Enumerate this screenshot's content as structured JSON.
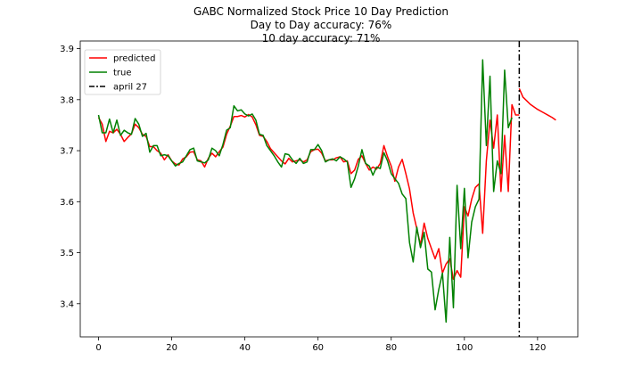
{
  "chart_data": {
    "type": "line",
    "title": "GABC Normalized Stock Price 10 Day Prediction",
    "subtitle_lines": [
      "Day to Day accuracy: 76%",
      "10 day accuracy: 71%"
    ],
    "xlabel": "",
    "ylabel": "",
    "xlim": [
      -5,
      131
    ],
    "ylim": [
      3.335,
      3.915
    ],
    "x_ticks": [
      0,
      20,
      40,
      60,
      80,
      100,
      120
    ],
    "y_ticks": [
      3.4,
      3.5,
      3.6,
      3.7,
      3.8,
      3.9
    ],
    "y_tick_labels": [
      "3.4",
      "3.5",
      "3.6",
      "3.7",
      "3.8",
      "3.9"
    ],
    "grid": false,
    "legend": {
      "placement": "top-left",
      "entries": [
        {
          "label": "predicted",
          "color": "#ff0000",
          "style": "solid"
        },
        {
          "label": "true",
          "color": "#008000",
          "style": "solid"
        },
        {
          "label": "april 27",
          "color": "#000000",
          "style": "dashdot"
        }
      ]
    },
    "vline": {
      "x": 115,
      "label": "april 27",
      "color": "#000000"
    },
    "series": [
      {
        "name": "predicted",
        "color": "#ff0000",
        "x_start": 0,
        "values": [
          3.765,
          3.752,
          3.718,
          3.738,
          3.735,
          3.742,
          3.732,
          3.718,
          3.726,
          3.733,
          3.752,
          3.745,
          3.732,
          3.728,
          3.708,
          3.708,
          3.7,
          3.695,
          3.682,
          3.692,
          3.68,
          3.674,
          3.672,
          3.684,
          3.688,
          3.697,
          3.698,
          3.682,
          3.68,
          3.668,
          3.685,
          3.695,
          3.688,
          3.698,
          3.707,
          3.732,
          3.748,
          3.767,
          3.767,
          3.769,
          3.766,
          3.771,
          3.766,
          3.751,
          3.73,
          3.728,
          3.718,
          3.704,
          3.696,
          3.688,
          3.68,
          3.674,
          3.685,
          3.678,
          3.68,
          3.682,
          3.678,
          3.682,
          3.698,
          3.702,
          3.703,
          3.695,
          3.68,
          3.682,
          3.682,
          3.686,
          3.688,
          3.678,
          3.68,
          3.655,
          3.662,
          3.683,
          3.69,
          3.675,
          3.662,
          3.668,
          3.664,
          3.675,
          3.71,
          3.688,
          3.67,
          3.64,
          3.668,
          3.683,
          3.655,
          3.625,
          3.578,
          3.547,
          3.515,
          3.558,
          3.528,
          3.508,
          3.488,
          3.508,
          3.46,
          3.478,
          3.488,
          3.448,
          3.465,
          3.452,
          3.59,
          3.572,
          3.605,
          3.628,
          3.635,
          3.538,
          3.68,
          3.76,
          3.705,
          3.77,
          3.62,
          3.73,
          3.62,
          3.79,
          3.77,
          3.77
        ]
      },
      {
        "name": "true",
        "color": "#008000",
        "x_start": 0,
        "values": [
          3.77,
          3.735,
          3.735,
          3.762,
          3.735,
          3.76,
          3.73,
          3.74,
          3.735,
          3.732,
          3.763,
          3.752,
          3.728,
          3.734,
          3.697,
          3.71,
          3.71,
          3.69,
          3.692,
          3.69,
          3.68,
          3.67,
          3.675,
          3.678,
          3.69,
          3.702,
          3.705,
          3.68,
          3.678,
          3.676,
          3.682,
          3.705,
          3.7,
          3.69,
          3.712,
          3.74,
          3.745,
          3.788,
          3.778,
          3.78,
          3.772,
          3.768,
          3.772,
          3.76,
          3.732,
          3.73,
          3.71,
          3.7,
          3.69,
          3.678,
          3.668,
          3.694,
          3.692,
          3.682,
          3.675,
          3.685,
          3.675,
          3.678,
          3.702,
          3.702,
          3.712,
          3.7,
          3.678,
          3.682,
          3.684,
          3.68,
          3.688,
          3.684,
          3.678,
          3.628,
          3.645,
          3.67,
          3.702,
          3.675,
          3.67,
          3.652,
          3.668,
          3.665,
          3.696,
          3.68,
          3.655,
          3.645,
          3.636,
          3.615,
          3.606,
          3.52,
          3.482,
          3.55,
          3.51,
          3.54,
          3.468,
          3.462,
          3.388,
          3.428,
          3.46,
          3.364,
          3.53,
          3.392,
          3.632,
          3.508,
          3.626,
          3.49,
          3.56,
          3.59,
          3.605,
          3.878,
          3.71,
          3.846,
          3.62,
          3.68,
          3.655,
          3.858,
          3.745,
          3.765
        ]
      },
      {
        "name": "",
        "color": "#ff0000",
        "x_start": 115,
        "values": [
          3.822,
          3.805,
          3.798,
          3.791,
          3.786,
          3.781,
          3.777,
          3.773,
          3.769,
          3.765,
          3.76
        ]
      }
    ]
  }
}
